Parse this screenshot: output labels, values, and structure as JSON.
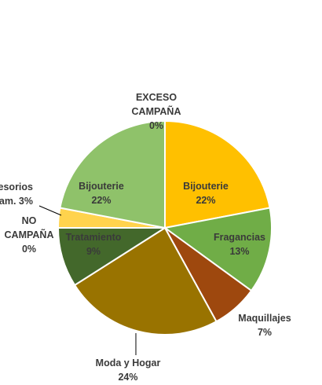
{
  "chart_data": {
    "type": "pie",
    "title": "",
    "start_at": "top",
    "direction": "clockwise",
    "slices": [
      {
        "label": "Bijouterie",
        "pct_text": "22%",
        "value": 22,
        "color": "#FFC000"
      },
      {
        "label": "Fragancias",
        "pct_text": "13%",
        "value": 13,
        "color": "#70AD47"
      },
      {
        "label": "Maquillajes",
        "pct_text": "7%",
        "value": 7,
        "color": "#9E480E"
      },
      {
        "label": "Moda y Hogar",
        "pct_text": "24%",
        "value": 24,
        "color": "#997300"
      },
      {
        "label": "Tratamiento",
        "pct_text": "9%",
        "value": 9,
        "color": "#43682B"
      },
      {
        "label": "NO CAMPAÑA",
        "pct_text": "0%",
        "value": 0,
        "color": "#C55A11"
      },
      {
        "label": "Accesorios Cam.",
        "pct_text": "3%",
        "value": 3,
        "color": "#FFD34D"
      },
      {
        "label": "Bijouterie",
        "pct_text": "22%",
        "value": 22,
        "color": "#8FC26A"
      },
      {
        "label": "EXCESO CAMPAÑA",
        "pct_text": "0%",
        "value": 0,
        "color": "#A9D18E"
      }
    ]
  }
}
